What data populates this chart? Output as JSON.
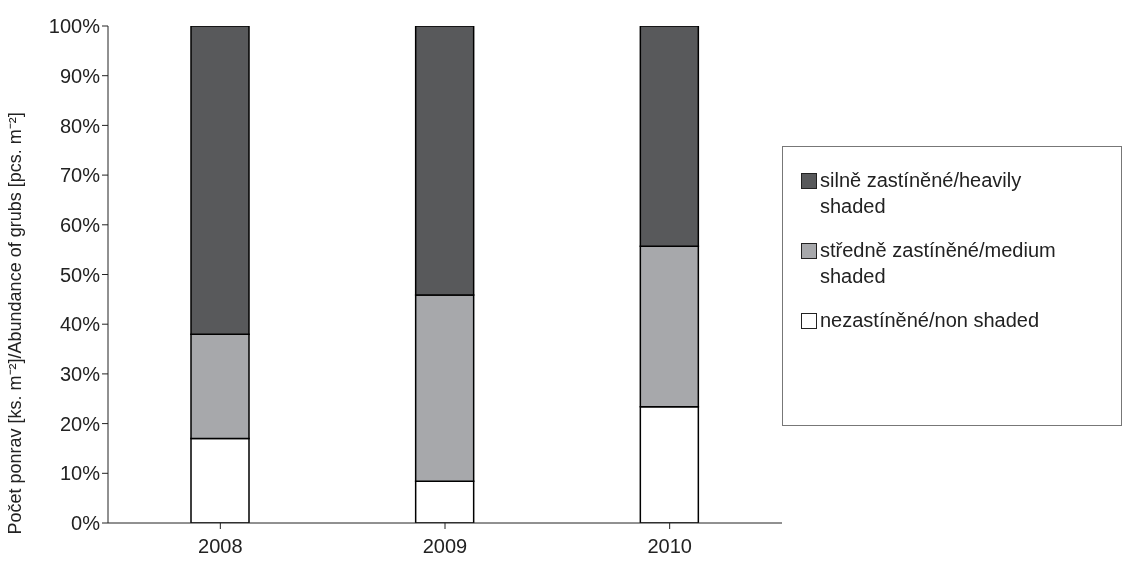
{
  "chart_data": {
    "type": "bar",
    "stacked": true,
    "ylabel": "Počet ponrav [ks. m⁻²]/Abundance of grubs [pcs. m⁻²]",
    "categories": [
      "2008",
      "2009",
      "2010"
    ],
    "series": [
      {
        "name": "nezastíněné/non shaded",
        "color": "#ffffff",
        "values": [
          17,
          8.4,
          23.4
        ]
      },
      {
        "name": "středně zastíněné/medium shaded",
        "color": "#a7a8ab",
        "values": [
          21,
          37.5,
          32.3
        ]
      },
      {
        "name": "silně zastíněné/heavily shaded",
        "color": "#58595b",
        "values": [
          62,
          54.1,
          44.3
        ]
      }
    ],
    "ylim": [
      0,
      100
    ],
    "yticks": [
      {
        "value": 0,
        "label": "0%"
      },
      {
        "value": 10,
        "label": "10%"
      },
      {
        "value": 20,
        "label": "20%"
      },
      {
        "value": 30,
        "label": "30%"
      },
      {
        "value": 40,
        "label": "40%"
      },
      {
        "value": 50,
        "label": "50%"
      },
      {
        "value": 60,
        "label": "60%"
      },
      {
        "value": 70,
        "label": "70%"
      },
      {
        "value": 80,
        "label": "80%"
      },
      {
        "value": 90,
        "label": "90%"
      },
      {
        "value": 100,
        "label": "100%"
      }
    ],
    "grid": false,
    "legend": "right"
  }
}
